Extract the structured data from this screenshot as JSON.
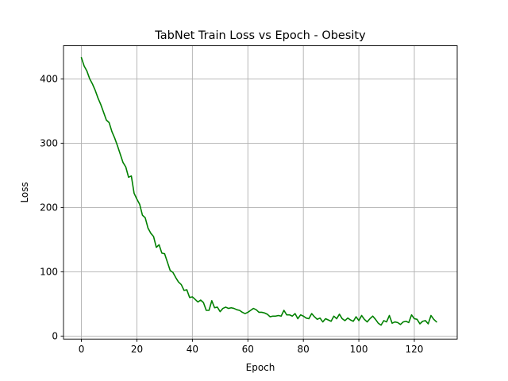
{
  "chart_data": {
    "type": "line",
    "title": "TabNet Train Loss vs Epoch - Obesity",
    "xlabel": "Epoch",
    "ylabel": "Loss",
    "xlim": [
      -6.45,
      135.45
    ],
    "ylim": [
      -4.7,
      451.6
    ],
    "xticks": [
      0,
      20,
      40,
      60,
      80,
      100,
      120
    ],
    "yticks": [
      0,
      100,
      200,
      300,
      400
    ],
    "grid": true,
    "series": [
      {
        "name": "",
        "color": "#008000",
        "x": [
          0,
          1,
          2,
          3,
          4,
          5,
          6,
          7,
          8,
          9,
          10,
          11,
          12,
          13,
          14,
          15,
          16,
          17,
          18,
          19,
          20,
          21,
          22,
          23,
          24,
          25,
          26,
          27,
          28,
          29,
          30,
          31,
          32,
          33,
          34,
          35,
          36,
          37,
          38,
          39,
          40,
          41,
          42,
          43,
          44,
          45,
          46,
          47,
          48,
          49,
          50,
          51,
          52,
          53,
          54,
          55,
          56,
          57,
          58,
          59,
          60,
          61,
          62,
          63,
          64,
          65,
          66,
          67,
          68,
          69,
          70,
          71,
          72,
          73,
          74,
          75,
          76,
          77,
          78,
          79,
          80,
          81,
          82,
          83,
          84,
          85,
          86,
          87,
          88,
          89,
          90,
          91,
          92,
          93,
          94,
          95,
          96,
          97,
          98,
          99,
          100,
          101,
          102,
          103,
          104,
          105,
          106,
          107,
          108,
          109,
          110,
          111,
          112,
          113,
          114,
          115,
          116,
          117,
          118,
          119,
          120,
          121,
          122,
          123,
          124,
          125,
          126,
          127,
          128
        ],
        "y": [
          433,
          420,
          412,
          400,
          392,
          382,
          370,
          360,
          348,
          336,
          332,
          318,
          308,
          296,
          283,
          270,
          263,
          247,
          249,
          222,
          213,
          205,
          188,
          184,
          168,
          160,
          155,
          138,
          142,
          129,
          128,
          115,
          102,
          99,
          91,
          84,
          80,
          71,
          72,
          60,
          61,
          57,
          53,
          56,
          52,
          40,
          40,
          55,
          44,
          45,
          38,
          43,
          45,
          43,
          44,
          43,
          41,
          40,
          37,
          35,
          37,
          40,
          43,
          41,
          37,
          37,
          36,
          34,
          30,
          31,
          31,
          32,
          31,
          40,
          33,
          33,
          31,
          35,
          27,
          33,
          31,
          28,
          27,
          35,
          30,
          26,
          28,
          22,
          27,
          25,
          23,
          31,
          27,
          34,
          27,
          24,
          28,
          25,
          23,
          30,
          24,
          32,
          26,
          22,
          27,
          31,
          26,
          20,
          17,
          24,
          22,
          32,
          20,
          22,
          21,
          18,
          22,
          23,
          21,
          33,
          27,
          26,
          19,
          23,
          24,
          19,
          32,
          26,
          22
        ]
      }
    ]
  }
}
